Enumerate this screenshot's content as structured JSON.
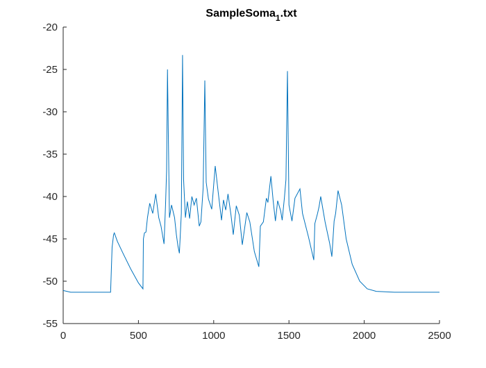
{
  "chart_data": {
    "type": "line",
    "title": {
      "text": "SampleSoma",
      "subscript": "1",
      "suffix": ".txt"
    },
    "xlim": [
      0,
      2500
    ],
    "xticks": [
      0,
      500,
      1000,
      1500,
      2000,
      2500
    ],
    "ylim": [
      -55,
      -20
    ],
    "yticks": [
      -55,
      -50,
      -45,
      -40,
      -35,
      -30,
      -25,
      -20
    ],
    "series": [
      {
        "color": "#0072bd",
        "x": [
          0,
          50,
          200,
          315,
          325,
          335,
          340,
          360,
          400,
          450,
          500,
          530,
          533,
          540,
          550,
          560,
          575,
          595,
          615,
          635,
          650,
          670,
          680,
          687,
          693,
          706,
          720,
          740,
          752,
          762,
          772,
          785,
          793,
          800,
          812,
          825,
          840,
          855,
          870,
          885,
          904,
          915,
          930,
          941,
          950,
          965,
          987,
          1010,
          1030,
          1052,
          1065,
          1080,
          1095,
          1115,
          1130,
          1150,
          1170,
          1190,
          1220,
          1240,
          1270,
          1300,
          1310,
          1330,
          1350,
          1360,
          1380,
          1395,
          1410,
          1425,
          1445,
          1455,
          1470,
          1480,
          1490,
          1500,
          1520,
          1540,
          1573,
          1590,
          1630,
          1665,
          1672,
          1690,
          1700,
          1711,
          1740,
          1770,
          1785,
          1800,
          1810,
          1826,
          1850,
          1880,
          1920,
          1970,
          2020,
          2080,
          2200,
          2500
        ],
        "values": [
          -51.1,
          -51.3,
          -51.3,
          -51.3,
          -46,
          -44.5,
          -44.3,
          -45.3,
          -46.8,
          -48.6,
          -50.2,
          -50.9,
          -45,
          -44.3,
          -44.2,
          -42.5,
          -40.8,
          -42,
          -39.7,
          -42.5,
          -43.5,
          -45.6,
          -41,
          -37,
          -25,
          -42.5,
          -41,
          -42.5,
          -44.5,
          -45.8,
          -46.7,
          -42,
          -23.3,
          -38,
          -42.5,
          -40.6,
          -42.6,
          -40,
          -41,
          -40.2,
          -43.5,
          -43,
          -39,
          -26.3,
          -38.3,
          -40.3,
          -41.5,
          -36.4,
          -39.5,
          -42.8,
          -40.4,
          -41.6,
          -39.7,
          -42.2,
          -44.5,
          -41.1,
          -42.2,
          -45.7,
          -41.9,
          -43,
          -46.5,
          -48.3,
          -43.5,
          -43,
          -40.2,
          -40.7,
          -37.6,
          -40.5,
          -42.9,
          -40.5,
          -41.7,
          -42.8,
          -40.1,
          -38,
          -25.2,
          -41,
          -42.9,
          -40.2,
          -39.1,
          -42,
          -44.8,
          -47.5,
          -43.2,
          -42,
          -41.2,
          -40,
          -43,
          -45.5,
          -47.1,
          -42.9,
          -42,
          -39.3,
          -41,
          -45,
          -48,
          -50,
          -50.9,
          -51.2,
          -51.3,
          -51.3
        ]
      }
    ]
  }
}
